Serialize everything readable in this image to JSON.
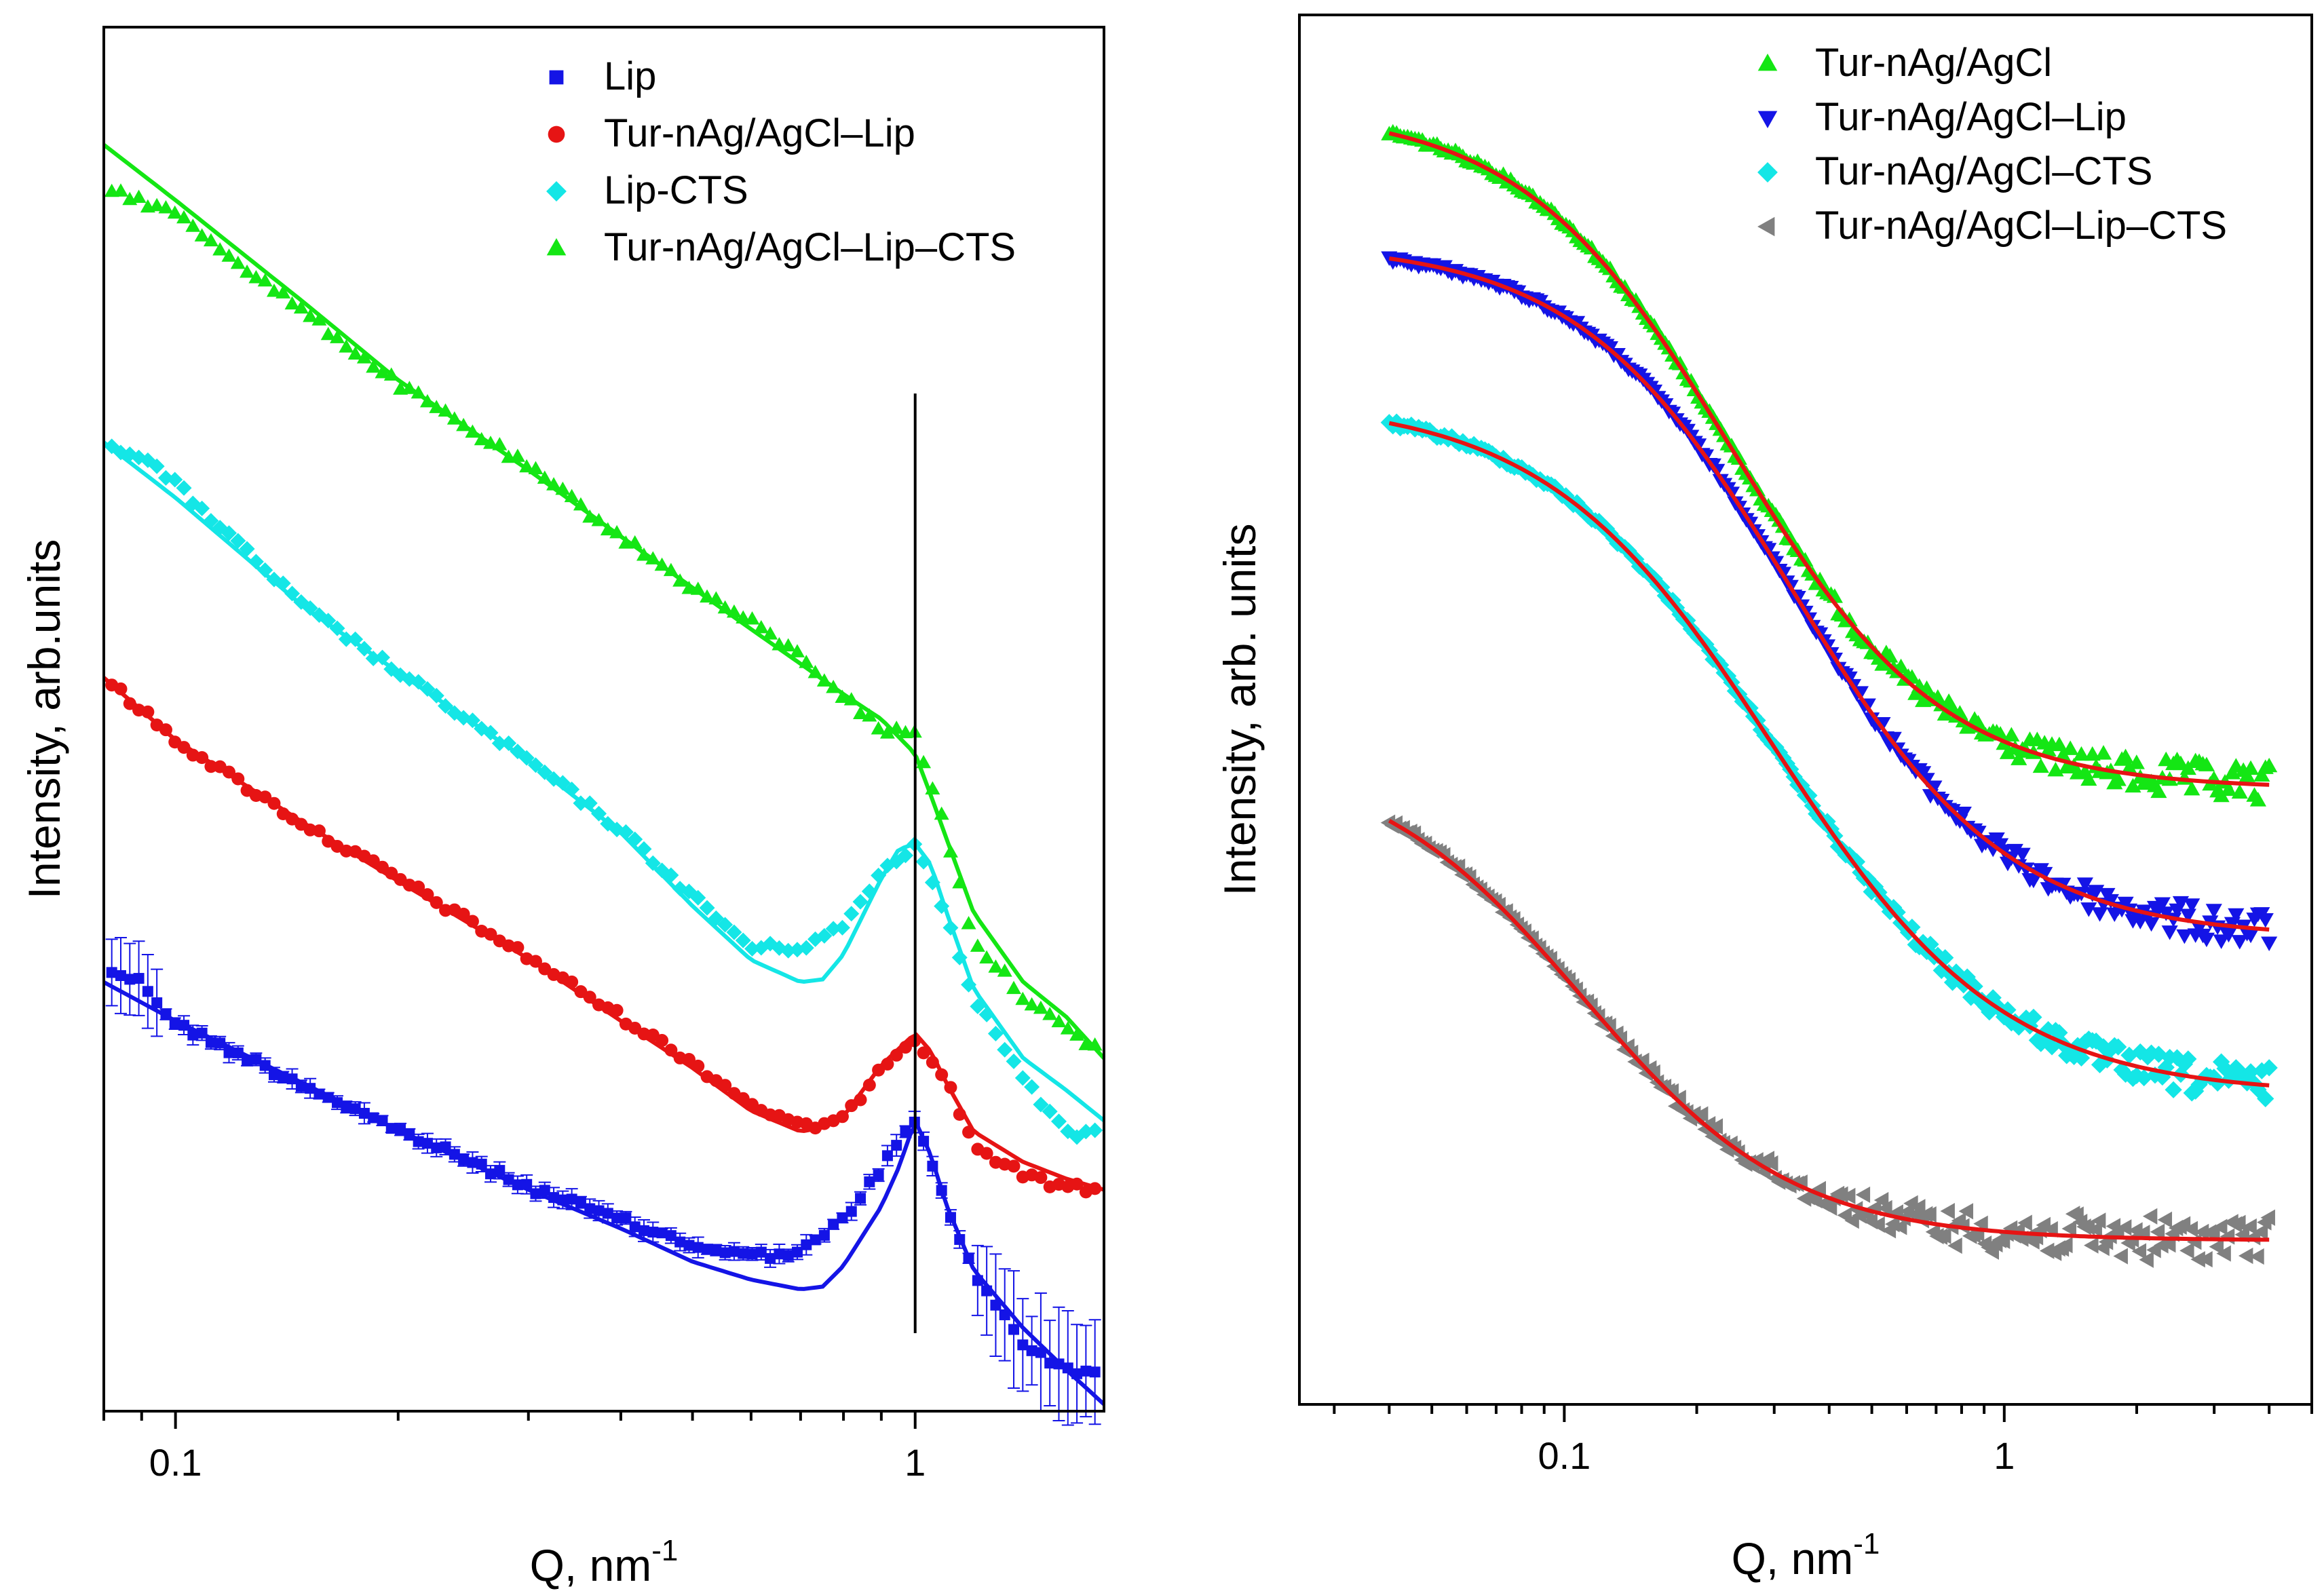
{
  "chart_data": [
    {
      "type": "scatter",
      "panel": "left",
      "xscale": "log",
      "xlim": [
        0.08,
        1.8
      ],
      "ylabel": "Intensity, arb.units",
      "xlabel": "Q, nm",
      "xlabel_sup": "-1",
      "x_ticks": [
        {
          "value": 0.1,
          "label": "0.1"
        },
        {
          "value": 1,
          "label": "1"
        }
      ],
      "y_ticks_shown": false,
      "legend_position": "top-right",
      "vertical_line_x": 1.0,
      "fit_color": "matching series color",
      "series": [
        {
          "name": "Lip",
          "color": "#1414e6",
          "marker": "square",
          "error_bars": true,
          "points": [
            [
              0.08,
              0.68
            ],
            [
              0.09,
              0.69
            ],
            [
              0.1,
              0.72
            ],
            [
              0.15,
              0.765
            ],
            [
              0.2,
              0.797
            ],
            [
              0.3,
              0.838
            ],
            [
              0.4,
              0.862
            ],
            [
              0.5,
              0.88
            ],
            [
              0.6,
              0.888
            ],
            [
              0.7,
              0.885
            ],
            [
              0.8,
              0.862
            ],
            [
              0.9,
              0.824
            ],
            [
              1.0,
              0.79
            ],
            [
              1.1,
              0.85
            ],
            [
              1.2,
              0.9
            ],
            [
              1.4,
              0.95
            ],
            [
              1.6,
              0.97
            ]
          ],
          "fit": [
            [
              0.08,
              0.69
            ],
            [
              0.1,
              0.718
            ],
            [
              0.15,
              0.764
            ],
            [
              0.2,
              0.797
            ],
            [
              0.3,
              0.84
            ],
            [
              0.4,
              0.868
            ],
            [
              0.5,
              0.892
            ],
            [
              0.6,
              0.905
            ],
            [
              0.7,
              0.912
            ],
            [
              0.75,
              0.91
            ],
            [
              0.8,
              0.895
            ],
            [
              0.9,
              0.852
            ],
            [
              0.95,
              0.824
            ],
            [
              1.0,
              0.79
            ],
            [
              1.05,
              0.815
            ],
            [
              1.1,
              0.85
            ],
            [
              1.2,
              0.898
            ],
            [
              1.4,
              0.94
            ],
            [
              1.6,
              0.97
            ],
            [
              1.8,
              0.995
            ]
          ]
        },
        {
          "name": "Tur-nAg/AgCl–Lip",
          "color": "#e61414",
          "marker": "circle",
          "error_bars": false,
          "points": [
            [
              0.08,
              0.47
            ],
            [
              0.1,
              0.515
            ],
            [
              0.15,
              0.577
            ],
            [
              0.2,
              0.615
            ],
            [
              0.3,
              0.672
            ],
            [
              0.4,
              0.715
            ],
            [
              0.5,
              0.748
            ],
            [
              0.6,
              0.778
            ],
            [
              0.7,
              0.795
            ],
            [
              0.8,
              0.79
            ],
            [
              0.9,
              0.75
            ],
            [
              1.0,
              0.73
            ],
            [
              1.1,
              0.76
            ],
            [
              1.2,
              0.808
            ],
            [
              1.4,
              0.83
            ],
            [
              1.6,
              0.838
            ],
            [
              1.8,
              0.84
            ]
          ],
          "fit": [
            [
              0.08,
              0.47
            ],
            [
              0.1,
              0.515
            ],
            [
              0.15,
              0.576
            ],
            [
              0.2,
              0.617
            ],
            [
              0.3,
              0.673
            ],
            [
              0.4,
              0.718
            ],
            [
              0.5,
              0.752
            ],
            [
              0.6,
              0.783
            ],
            [
              0.7,
              0.798
            ],
            [
              0.75,
              0.795
            ],
            [
              0.8,
              0.787
            ],
            [
              0.9,
              0.75
            ],
            [
              1.0,
              0.727
            ],
            [
              1.05,
              0.74
            ],
            [
              1.1,
              0.762
            ],
            [
              1.2,
              0.798
            ],
            [
              1.4,
              0.82
            ],
            [
              1.6,
              0.832
            ],
            [
              1.8,
              0.84
            ]
          ]
        },
        {
          "name": "Lip-CTS",
          "color": "#14e6e6",
          "marker": "diamond",
          "error_bars": false,
          "points": [
            [
              0.08,
              0.3
            ],
            [
              0.09,
              0.31
            ],
            [
              0.1,
              0.33
            ],
            [
              0.15,
              0.42
            ],
            [
              0.2,
              0.466
            ],
            [
              0.3,
              0.53
            ],
            [
              0.4,
              0.58
            ],
            [
              0.5,
              0.628
            ],
            [
              0.6,
              0.665
            ],
            [
              0.7,
              0.665
            ],
            [
              0.8,
              0.65
            ],
            [
              0.9,
              0.61
            ],
            [
              1.0,
              0.59
            ],
            [
              1.1,
              0.64
            ],
            [
              1.2,
              0.7
            ],
            [
              1.4,
              0.76
            ],
            [
              1.6,
              0.8
            ]
          ],
          "fit": [
            [
              0.08,
              0.3
            ],
            [
              0.1,
              0.34
            ],
            [
              0.15,
              0.42
            ],
            [
              0.2,
              0.466
            ],
            [
              0.3,
              0.53
            ],
            [
              0.4,
              0.582
            ],
            [
              0.5,
              0.635
            ],
            [
              0.6,
              0.674
            ],
            [
              0.7,
              0.69
            ],
            [
              0.75,
              0.688
            ],
            [
              0.8,
              0.67
            ],
            [
              0.9,
              0.615
            ],
            [
              0.95,
              0.594
            ],
            [
              1.0,
              0.59
            ],
            [
              1.05,
              0.605
            ],
            [
              1.1,
              0.638
            ],
            [
              1.2,
              0.695
            ],
            [
              1.4,
              0.745
            ],
            [
              1.6,
              0.768
            ],
            [
              1.8,
              0.79
            ]
          ]
        },
        {
          "name": "Tur-nAg/AgCl–Lip–CTS",
          "color": "#14e614",
          "marker": "triangle-up",
          "error_bars": false,
          "points": [
            [
              0.08,
              0.115
            ],
            [
              0.1,
              0.135
            ],
            [
              0.15,
              0.207
            ],
            [
              0.2,
              0.258
            ],
            [
              0.3,
              0.318
            ],
            [
              0.4,
              0.368
            ],
            [
              0.5,
              0.405
            ],
            [
              0.6,
              0.43
            ],
            [
              0.7,
              0.455
            ],
            [
              0.8,
              0.483
            ],
            [
              0.9,
              0.508
            ],
            [
              1.0,
              0.51
            ],
            [
              1.1,
              0.58
            ],
            [
              1.2,
              0.66
            ],
            [
              1.4,
              0.7
            ],
            [
              1.6,
              0.725
            ],
            [
              1.8,
              0.74
            ]
          ],
          "fit": [
            [
              0.08,
              0.085
            ],
            [
              0.1,
              0.125
            ],
            [
              0.15,
              0.2
            ],
            [
              0.2,
              0.255
            ],
            [
              0.3,
              0.32
            ],
            [
              0.4,
              0.368
            ],
            [
              0.5,
              0.405
            ],
            [
              0.6,
              0.435
            ],
            [
              0.7,
              0.46
            ],
            [
              0.8,
              0.482
            ],
            [
              0.9,
              0.5
            ],
            [
              1.0,
              0.525
            ],
            [
              1.05,
              0.555
            ],
            [
              1.1,
              0.585
            ],
            [
              1.2,
              0.64
            ],
            [
              1.4,
              0.69
            ],
            [
              1.6,
              0.715
            ],
            [
              1.8,
              0.745
            ]
          ]
        }
      ]
    },
    {
      "type": "scatter",
      "panel": "right",
      "xscale": "log",
      "xlim": [
        0.025,
        5.0
      ],
      "ylabel": "Intensity, arb. units",
      "xlabel": "Q, nm",
      "xlabel_sup": "-1",
      "x_ticks": [
        {
          "value": 0.1,
          "label": "0.1"
        },
        {
          "value": 1,
          "label": "1"
        }
      ],
      "y_ticks_shown": false,
      "legend_position": "top-right",
      "fit_color": "#e61414",
      "series": [
        {
          "name": "Tur-nAg/AgCl",
          "color": "#14e614",
          "marker": "triangle-up",
          "plateau": 0.557,
          "amp": 0.49,
          "rc": 0.24,
          "sigma": 0.55,
          "noise": 0.012
        },
        {
          "name": "Tur-nAg/AgCl–Lip",
          "color": "#1414e6",
          "marker": "triangle-down",
          "plateau": 0.664,
          "amp": 0.5,
          "rc": 0.33,
          "sigma": 0.56,
          "noise": 0.012
        },
        {
          "name": "Tur-nAg/AgCl–CTS",
          "color": "#14e6e6",
          "marker": "diamond",
          "plateau": 0.777,
          "amp": 0.5,
          "rc": 0.3,
          "sigma": 0.6,
          "noise": 0.012
        },
        {
          "name": "Tur-nAg/AgCl–Lip–CTS",
          "color": "#808080",
          "marker": "triangle-left",
          "plateau": 0.882,
          "amp": 0.35,
          "rc": 0.11,
          "sigma": 0.55,
          "noise": 0.014
        }
      ]
    }
  ]
}
